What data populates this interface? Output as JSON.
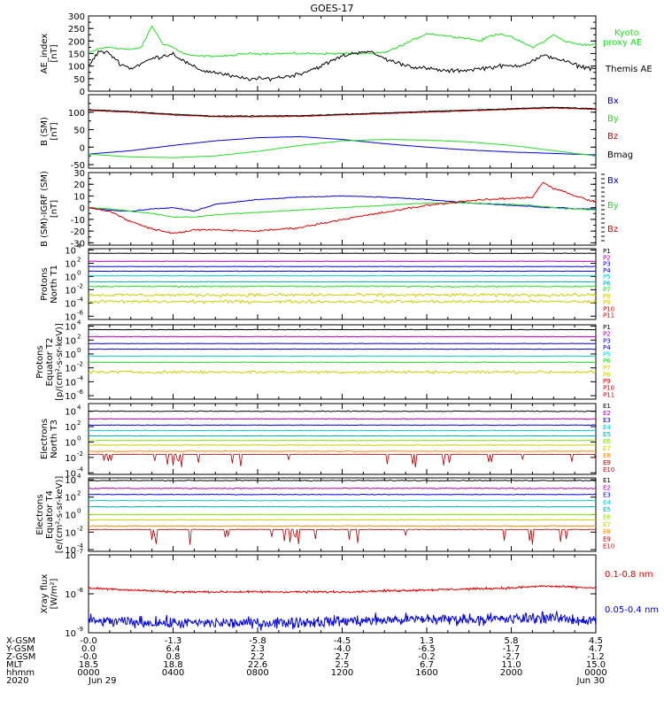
{
  "title": "GOES-17",
  "colors": {
    "black": "#000000",
    "red": "#dd0000",
    "green": "#22dd22",
    "blue": "#0000dd",
    "cyan": "#00cccc",
    "yellow": "#cccc00",
    "orange": "#ff8800",
    "purple": "#aa00aa",
    "magenta": "#ff00ff",
    "teal": "#00aaaa",
    "lime": "#88dd00",
    "dkred": "#aa0000"
  },
  "chart_data": [
    {
      "type": "line",
      "panel": "ae",
      "ylabel": [
        "AE_index",
        "[nT]"
      ],
      "ylim": [
        0,
        300
      ],
      "yticks": [
        [
          "0",
          "0"
        ],
        [
          "50",
          "50"
        ],
        [
          "100",
          "100"
        ],
        [
          "150",
          "150"
        ],
        [
          "200",
          "200"
        ],
        [
          "250",
          "250"
        ],
        [
          "300",
          "300"
        ]
      ],
      "ylog": false,
      "x": [
        0,
        0.5,
        1,
        1.5,
        2,
        2.5,
        3,
        3.5,
        4,
        4.5,
        5,
        5.5,
        6,
        6.5,
        7,
        7.5,
        8,
        8.5,
        9,
        9.5,
        10,
        10.5,
        11,
        11.5,
        12,
        12.5,
        13,
        13.5,
        14,
        14.5,
        15,
        15.5,
        16,
        16.5,
        17,
        17.5,
        18,
        18.5,
        19,
        19.5,
        20,
        20.5,
        21,
        21.5,
        22,
        22.5,
        23,
        23.5,
        24
      ],
      "series": [
        {
          "name": "Kyoto proxy AE",
          "legend": [
            "Kyoto",
            "proxy AE"
          ],
          "color": "green",
          "noise": 6,
          "values": [
            150,
            170,
            175,
            170,
            165,
            175,
            260,
            190,
            175,
            150,
            140,
            140,
            140,
            140,
            145,
            150,
            150,
            150,
            150,
            150,
            150,
            150,
            150,
            150,
            150,
            150,
            150,
            150,
            155,
            170,
            190,
            210,
            230,
            225,
            220,
            215,
            210,
            200,
            220,
            230,
            215,
            195,
            175,
            195,
            225,
            200,
            190,
            185,
            185
          ]
        },
        {
          "name": "Themis AE",
          "legend": [
            "Themis AE"
          ],
          "color": "black",
          "noise": 12,
          "values": [
            100,
            160,
            150,
            110,
            90,
            110,
            130,
            140,
            150,
            120,
            95,
            80,
            75,
            65,
            55,
            50,
            48,
            50,
            55,
            60,
            70,
            85,
            100,
            120,
            140,
            150,
            160,
            150,
            130,
            115,
            105,
            95,
            90,
            85,
            80,
            82,
            85,
            90,
            95,
            100,
            100,
            105,
            120,
            140,
            135,
            120,
            105,
            95,
            90
          ]
        }
      ]
    },
    {
      "type": "line",
      "panel": "b",
      "ylabel": [
        "B (SM)",
        "[nT]"
      ],
      "ylim": [
        -60,
        150
      ],
      "yticks": [
        [
          "-50",
          "-50"
        ],
        [
          "0",
          "0"
        ],
        [
          "50",
          "50"
        ],
        [
          "100",
          "100"
        ]
      ],
      "ylog": false,
      "x": [
        0,
        2,
        4,
        6,
        8,
        10,
        12,
        14,
        16,
        18,
        20,
        22,
        24
      ],
      "series": [
        {
          "name": "Bx",
          "color": "blue",
          "noise": 0.5,
          "values": [
            -20,
            -10,
            5,
            18,
            27,
            30,
            22,
            10,
            0,
            -8,
            -14,
            -18,
            -22
          ]
        },
        {
          "name": "By",
          "color": "green",
          "noise": 0.5,
          "values": [
            -20,
            -28,
            -30,
            -25,
            -12,
            5,
            18,
            22,
            20,
            15,
            5,
            -10,
            -25
          ]
        },
        {
          "name": "Bz",
          "color": "red",
          "noise": 1.5,
          "values": [
            105,
            100,
            92,
            87,
            87,
            88,
            92,
            96,
            100,
            104,
            108,
            112,
            108
          ]
        },
        {
          "name": "Bmag",
          "color": "black",
          "noise": 1.5,
          "values": [
            107,
            102,
            94,
            89,
            89,
            90,
            94,
            98,
            102,
            106,
            110,
            114,
            110
          ]
        }
      ]
    },
    {
      "type": "line",
      "panel": "dbdiff",
      "ylabel": [
        "B (SM)-IGRF (SM)",
        "[nT]"
      ],
      "ylim": [
        -32,
        30
      ],
      "yticks": [
        [
          "-30",
          "-30"
        ],
        [
          "-20",
          "-20"
        ],
        [
          "-10",
          "-10"
        ],
        [
          "0",
          "0"
        ],
        [
          "10",
          "10"
        ],
        [
          "20",
          "20"
        ],
        [
          "30",
          "30"
        ]
      ],
      "ylog": false,
      "x": [
        0,
        1,
        2,
        3,
        4,
        5,
        6,
        8,
        10,
        12,
        14,
        16,
        18,
        20,
        21,
        21.5,
        22,
        22.5,
        23,
        24
      ],
      "series": [
        {
          "name": "Bx",
          "color": "blue",
          "noise": 0.5,
          "values": [
            0,
            -2,
            -3,
            -1,
            0,
            -3,
            3,
            7,
            9,
            10,
            9,
            7,
            4,
            2,
            1,
            0,
            0,
            0,
            -1,
            -1
          ]
        },
        {
          "name": "By",
          "color": "green",
          "noise": 0.5,
          "values": [
            0,
            -1,
            -3,
            -5,
            -8,
            -8,
            -6,
            -4,
            -2,
            0,
            2,
            4,
            4,
            3,
            2,
            1,
            0,
            -1,
            -1,
            -2
          ]
        },
        {
          "name": "Bz",
          "color": "red",
          "noise": 1.2,
          "values": [
            0,
            -3,
            -12,
            -18,
            -22,
            -19,
            -19,
            -20,
            -17,
            -10,
            -4,
            2,
            6,
            8,
            9,
            22,
            16,
            14,
            10,
            5
          ]
        }
      ]
    },
    {
      "type": "line",
      "panel": "p1",
      "ylabel": [
        "Protons",
        "North T1"
      ],
      "ylim": [
        -6.5,
        4.2
      ],
      "yticks": [
        [
          "10",
          "4"
        ],
        [
          "10",
          "2"
        ],
        [
          "10",
          "0"
        ],
        [
          "10",
          "-2"
        ],
        [
          "10",
          "-4"
        ],
        [
          "10",
          "-6"
        ]
      ],
      "ylog": true,
      "x": [
        0,
        24
      ],
      "series": [
        {
          "name": "P1",
          "color": "black",
          "noise": 0.05,
          "values": [
            3.5,
            3.5
          ]
        },
        {
          "name": "P2",
          "color": "purple",
          "noise": 0.05,
          "values": [
            2.3,
            2.3
          ]
        },
        {
          "name": "P3",
          "color": "blue",
          "noise": 0.05,
          "values": [
            1.5,
            1.5
          ]
        },
        {
          "name": "P4",
          "color": "blue",
          "noise": 0.05,
          "values": [
            0.8,
            0.8
          ]
        },
        {
          "name": "P5",
          "color": "cyan",
          "noise": 0.05,
          "values": [
            0.1,
            0.1
          ]
        },
        {
          "name": "P6",
          "color": "teal",
          "noise": 0.05,
          "values": [
            -0.8,
            -0.8
          ]
        },
        {
          "name": "P7",
          "color": "green",
          "noise": 0.15,
          "values": [
            -1.5,
            -1.5
          ]
        },
        {
          "name": "P8",
          "color": "yellow",
          "noise": 0.35,
          "values": [
            -2.8,
            -2.8
          ]
        },
        {
          "name": "P9",
          "color": "yellow",
          "noise": 0.35,
          "values": [
            -3.8,
            -3.8
          ]
        },
        {
          "name": "P10",
          "color": "red",
          "noise": 0.0,
          "values": [
            null,
            null
          ]
        },
        {
          "name": "P11",
          "color": "red",
          "noise": 0.0,
          "values": [
            null,
            null
          ]
        }
      ]
    },
    {
      "type": "line",
      "panel": "p2",
      "ylabel": [
        "Protons",
        "Equator T2",
        "[p/(cm²-s-sr-keV)]"
      ],
      "ylim": [
        -6.5,
        4.2
      ],
      "yticks": [
        [
          "10",
          "4"
        ],
        [
          "10",
          "2"
        ],
        [
          "10",
          "0"
        ],
        [
          "10",
          "-2"
        ],
        [
          "10",
          "-4"
        ],
        [
          "10",
          "-6"
        ]
      ],
      "ylog": true,
      "x": [
        0,
        24
      ],
      "series": [
        {
          "name": "P1",
          "color": "black",
          "noise": 0.05,
          "values": [
            3.5,
            3.5
          ]
        },
        {
          "name": "P2",
          "color": "purple",
          "noise": 0.05,
          "values": [
            2.5,
            2.5
          ]
        },
        {
          "name": "P3",
          "color": "blue",
          "noise": 0.05,
          "values": [
            1.5,
            1.5
          ]
        },
        {
          "name": "P4",
          "color": "blue",
          "noise": 0.05,
          "values": [
            0.7,
            0.7
          ]
        },
        {
          "name": "P5",
          "color": "cyan",
          "noise": 0.05,
          "values": [
            -0.3,
            -0.3
          ]
        },
        {
          "name": "P6",
          "color": "green",
          "noise": 0.1,
          "values": [
            -1.2,
            -1.2
          ]
        },
        {
          "name": "P7",
          "color": "yellow",
          "noise": 0.3,
          "values": [
            -2.6,
            -2.6
          ]
        },
        {
          "name": "P8",
          "color": "yellow",
          "noise": 0.0,
          "values": [
            null,
            null
          ]
        },
        {
          "name": "P9",
          "color": "red",
          "noise": 0.0,
          "values": [
            null,
            null
          ]
        },
        {
          "name": "P10",
          "color": "red",
          "noise": 0.0,
          "values": [
            null,
            null
          ]
        },
        {
          "name": "P11",
          "color": "red",
          "noise": 0.0,
          "values": [
            null,
            null
          ]
        }
      ]
    },
    {
      "type": "line",
      "panel": "e1",
      "ylabel": [
        "Electrons",
        "North T3"
      ],
      "ylim": [
        -4.2,
        5.0
      ],
      "yticks": [
        [
          "10",
          "4"
        ],
        [
          "10",
          "2"
        ],
        [
          "10",
          "0"
        ],
        [
          "10",
          "-2"
        ],
        [
          "10",
          "-4"
        ]
      ],
      "ylog": true,
      "x": [
        0,
        24
      ],
      "series": [
        {
          "name": "E1",
          "color": "black",
          "noise": 0.08,
          "values": [
            4.0,
            4.0
          ]
        },
        {
          "name": "E2",
          "color": "purple",
          "noise": 0.08,
          "values": [
            3.0,
            3.0
          ]
        },
        {
          "name": "E3",
          "color": "blue",
          "noise": 0.06,
          "values": [
            2.2,
            2.2
          ]
        },
        {
          "name": "E4",
          "color": "cyan",
          "noise": 0.06,
          "values": [
            1.5,
            1.5
          ]
        },
        {
          "name": "E5",
          "color": "teal",
          "noise": 0.06,
          "values": [
            0.8,
            0.8
          ]
        },
        {
          "name": "E6",
          "color": "lime",
          "noise": 0.06,
          "values": [
            0.2,
            0.2
          ]
        },
        {
          "name": "E7",
          "color": "yellow",
          "noise": 0.06,
          "values": [
            -0.4,
            -0.4
          ]
        },
        {
          "name": "E8",
          "color": "orange",
          "noise": 0.08,
          "values": [
            -1.2,
            -1.2
          ]
        },
        {
          "name": "E9",
          "color": "dkred",
          "noise": 0.0,
          "values": [
            -1.6,
            -1.6
          ],
          "spiky": true
        },
        {
          "name": "E10",
          "color": "red",
          "noise": 0.0,
          "values": [
            null,
            null
          ]
        }
      ]
    },
    {
      "type": "line",
      "panel": "e2",
      "ylabel": [
        "Electrons",
        "Equator T4",
        "[e/(cm²-s-sr-keV)]"
      ],
      "ylim": [
        -4.2,
        4.2
      ],
      "yticks": [
        [
          "10",
          "4"
        ],
        [
          "10",
          "2"
        ],
        [
          "10",
          "0"
        ],
        [
          "10",
          "-2"
        ],
        [
          "10",
          "-4"
        ]
      ],
      "ylog": true,
      "x": [
        0,
        24
      ],
      "series": [
        {
          "name": "E1",
          "color": "black",
          "noise": 0.08,
          "values": [
            3.9,
            3.9
          ]
        },
        {
          "name": "E2",
          "color": "purple",
          "noise": 0.08,
          "values": [
            3.0,
            3.0
          ]
        },
        {
          "name": "E3",
          "color": "blue",
          "noise": 0.06,
          "values": [
            2.3,
            2.3
          ]
        },
        {
          "name": "E4",
          "color": "cyan",
          "noise": 0.06,
          "values": [
            1.6,
            1.6
          ]
        },
        {
          "name": "E5",
          "color": "teal",
          "noise": 0.06,
          "values": [
            0.9,
            0.9
          ]
        },
        {
          "name": "E6",
          "color": "lime",
          "noise": 0.06,
          "values": [
            0.0,
            0.0
          ]
        },
        {
          "name": "E7",
          "color": "yellow",
          "noise": 0.06,
          "values": [
            -0.6,
            -0.6
          ]
        },
        {
          "name": "E8",
          "color": "orange",
          "noise": 0.08,
          "values": [
            -1.3,
            -1.3
          ]
        },
        {
          "name": "E9",
          "color": "dkred",
          "noise": 0.0,
          "values": [
            -1.7,
            -1.7
          ],
          "spiky": true
        },
        {
          "name": "E10",
          "color": "red",
          "noise": 0.0,
          "values": [
            null,
            null
          ]
        }
      ]
    },
    {
      "type": "line",
      "panel": "xray",
      "ylabel": [
        "Xray flux",
        "[W/m²]"
      ],
      "ylim": [
        -9.0,
        -7.0
      ],
      "yticks": [
        [
          "10",
          "-7"
        ],
        [
          "10",
          "-8"
        ],
        [
          "10",
          "-9"
        ]
      ],
      "ylog": true,
      "x": [
        0,
        4,
        8,
        12,
        16,
        20,
        21.5,
        24
      ],
      "series": [
        {
          "name": "0.1-0.8 nm",
          "color": "red",
          "noise": 0.04,
          "values": [
            -7.85,
            -7.95,
            -7.95,
            -7.95,
            -7.9,
            -7.85,
            -7.8,
            -7.85
          ]
        },
        {
          "name": "0.05-0.4 nm",
          "color": "blue",
          "noise": 0.22,
          "values": [
            -8.7,
            -8.75,
            -8.75,
            -8.7,
            -8.65,
            -8.65,
            -8.6,
            -8.7
          ]
        }
      ]
    }
  ],
  "ephemeris": {
    "row_labels": [
      "X-GSM",
      "Y-GSM",
      "Z-GSM",
      "MLT",
      "hhmm",
      "2020"
    ],
    "columns": [
      [
        "-0.0",
        "0.0",
        "-0.0",
        "18.5",
        "0000",
        "Jun 29"
      ],
      [
        "-1.3",
        "6.4",
        "0.8",
        "18.8",
        "0400",
        ""
      ],
      [
        "-5.8",
        "2.3",
        "2.2",
        "22.6",
        "0800",
        ""
      ],
      [
        "-4.5",
        "-4.0",
        "2.7",
        "2.5",
        "1200",
        ""
      ],
      [
        "1.3",
        "-6.5",
        "-0.2",
        "6.7",
        "1600",
        ""
      ],
      [
        "5.8",
        "-1.7",
        "-2.7",
        "11.0",
        "2000",
        ""
      ],
      [
        "4.5",
        "4.7",
        "-1.2",
        "15.0",
        "0000",
        "Jun 30"
      ]
    ]
  }
}
